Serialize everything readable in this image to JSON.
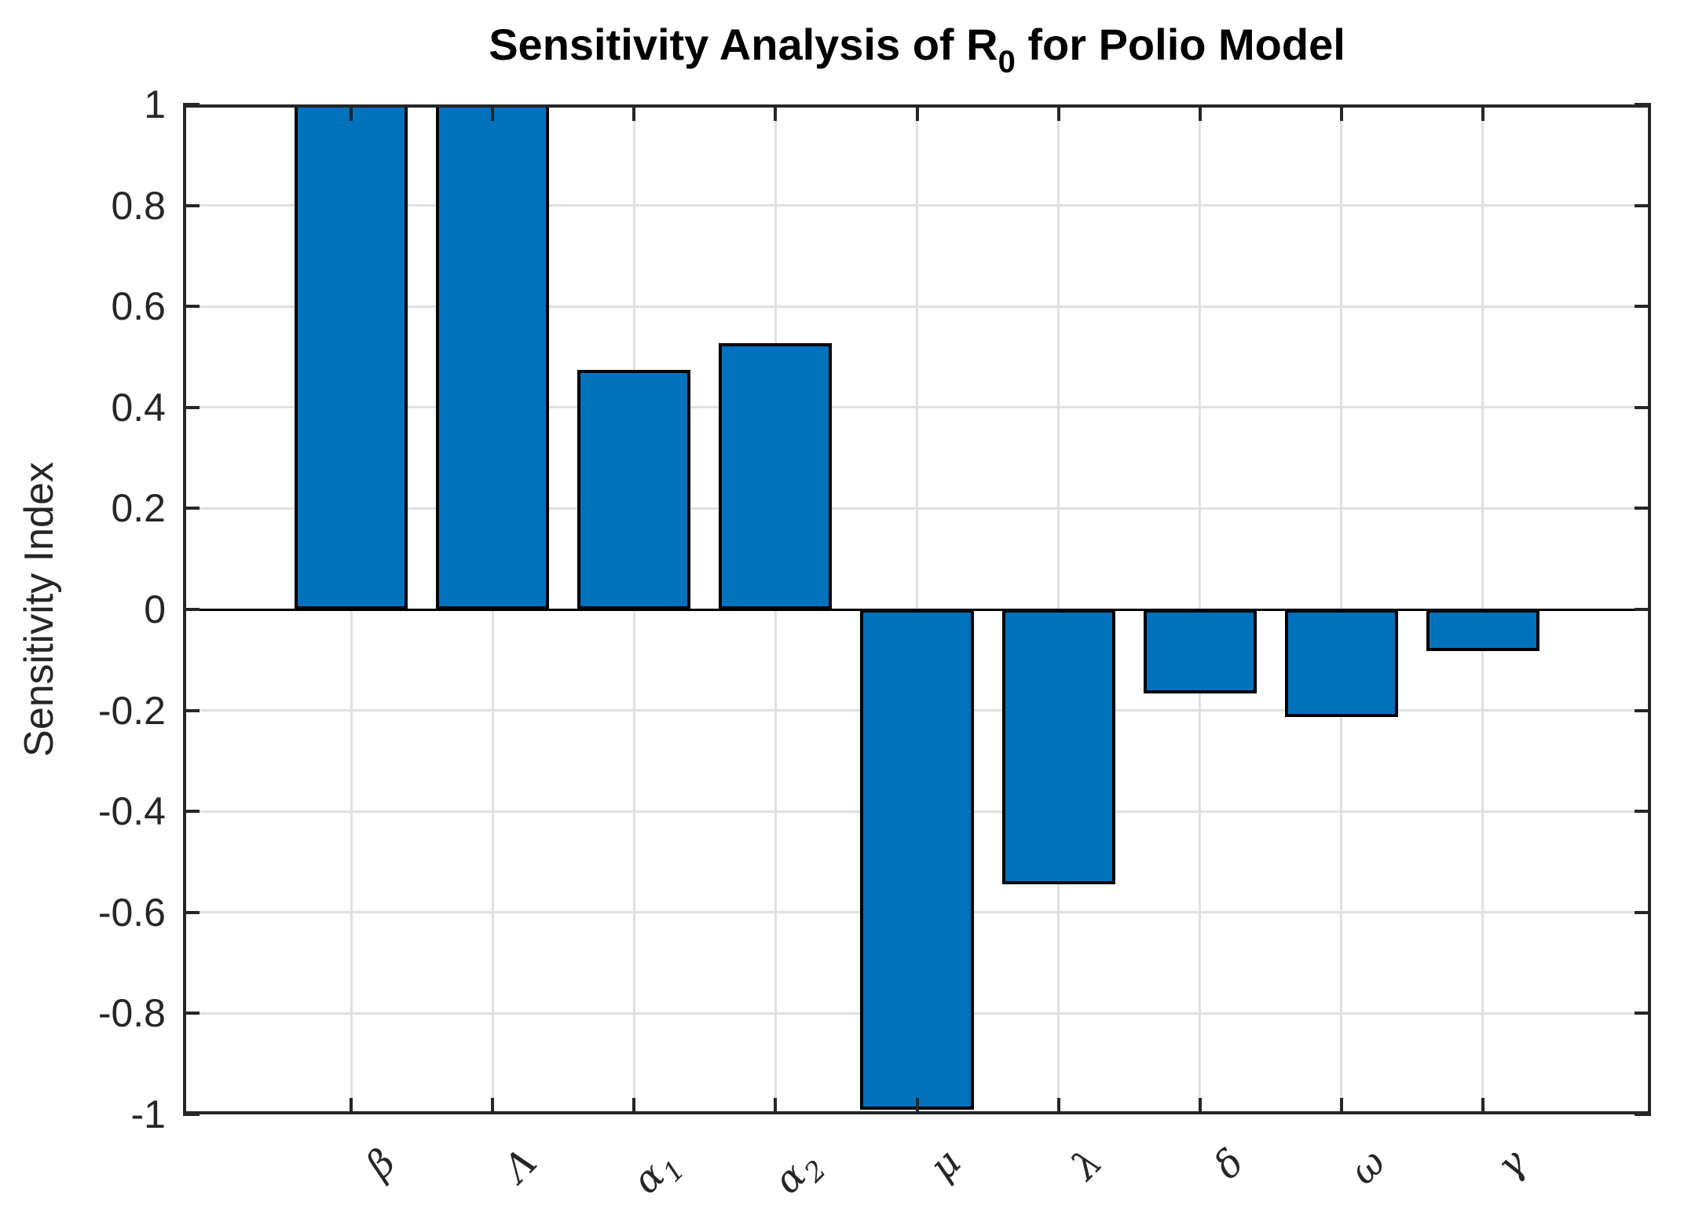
{
  "figure": {
    "title": {
      "part1": "Sensitivity Analysis of R",
      "sub": "0",
      "part2": " for Polio Model"
    },
    "ylabel": "Sensitivity Index"
  },
  "chart_data": {
    "type": "bar",
    "title": "Sensitivity Analysis of R_0 for Polio Model",
    "xlabel": "",
    "ylabel": "Sensitivity Index",
    "categories": [
      "β",
      "Λ",
      "α_1",
      "α_2",
      "μ",
      "λ",
      "δ",
      "ω",
      "γ"
    ],
    "category_parts": [
      {
        "base": "β",
        "sub": ""
      },
      {
        "base": "Λ",
        "sub": ""
      },
      {
        "base": "α",
        "sub": "1"
      },
      {
        "base": "α",
        "sub": "2"
      },
      {
        "base": "μ",
        "sub": ""
      },
      {
        "base": "λ",
        "sub": ""
      },
      {
        "base": "δ",
        "sub": ""
      },
      {
        "base": "ω",
        "sub": ""
      },
      {
        "base": "γ",
        "sub": ""
      }
    ],
    "values": [
      1,
      1,
      0.474,
      0.527,
      -0.99,
      -0.545,
      -0.166,
      -0.213,
      -0.082
    ],
    "x_positions": [
      1,
      2,
      3,
      4,
      5,
      6,
      7,
      8,
      9
    ],
    "xlim": [
      -0.19,
      10.19
    ],
    "ylim": [
      -1,
      1
    ],
    "yticks": {
      "values": [
        1,
        0.8,
        0.6,
        0.4,
        0.2,
        0,
        -0.2,
        -0.4,
        -0.6,
        -0.8,
        -1
      ],
      "labels": [
        "1",
        "0.8",
        "0.6",
        "0.4",
        "0.2",
        "0",
        "-0.2",
        "-0.4",
        "-0.6",
        "-0.8",
        "-1"
      ]
    },
    "bar_width_fraction": 0.8,
    "grid": true,
    "legend": null,
    "colors": {
      "bar_fill": "#0072BD",
      "bar_edge": "#000000",
      "axis": "#262626",
      "grid": "#E0E0E0",
      "zero_line": "#000000",
      "background": "#FFFFFF"
    }
  }
}
